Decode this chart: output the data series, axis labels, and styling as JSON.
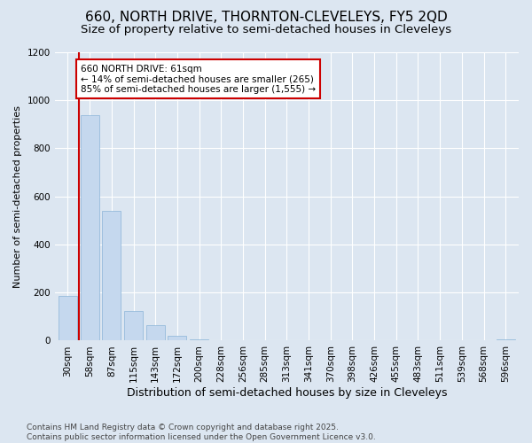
{
  "title": "660, NORTH DRIVE, THORNTON-CLEVELEYS, FY5 2QD",
  "subtitle": "Size of property relative to semi-detached houses in Cleveleys",
  "xlabel": "Distribution of semi-detached houses by size in Cleveleys",
  "ylabel": "Number of semi-detached properties",
  "categories": [
    "30sqm",
    "58sqm",
    "87sqm",
    "115sqm",
    "143sqm",
    "172sqm",
    "200sqm",
    "228sqm",
    "256sqm",
    "285sqm",
    "313sqm",
    "341sqm",
    "370sqm",
    "398sqm",
    "426sqm",
    "455sqm",
    "483sqm",
    "511sqm",
    "539sqm",
    "568sqm",
    "596sqm"
  ],
  "values": [
    185,
    940,
    540,
    125,
    65,
    20,
    5,
    0,
    0,
    0,
    0,
    0,
    0,
    0,
    0,
    0,
    0,
    0,
    0,
    0,
    5
  ],
  "bar_color": "#c5d8ee",
  "bar_edge_color": "#8ab4d8",
  "red_line_x": 0.5,
  "annotation_text": "660 NORTH DRIVE: 61sqm\n← 14% of semi-detached houses are smaller (265)\n85% of semi-detached houses are larger (1,555) →",
  "annotation_box_color": "#ffffff",
  "annotation_box_edge": "#cc0000",
  "red_line_color": "#cc0000",
  "ylim": [
    0,
    1200
  ],
  "yticks": [
    0,
    200,
    400,
    600,
    800,
    1000,
    1200
  ],
  "bg_color": "#dce6f1",
  "plot_bg_color": "#dce6f1",
  "footer": "Contains HM Land Registry data © Crown copyright and database right 2025.\nContains public sector information licensed under the Open Government Licence v3.0.",
  "title_fontsize": 11,
  "subtitle_fontsize": 9.5,
  "xlabel_fontsize": 9,
  "ylabel_fontsize": 8,
  "tick_fontsize": 7.5,
  "annotation_fontsize": 7.5,
  "footer_fontsize": 6.5
}
